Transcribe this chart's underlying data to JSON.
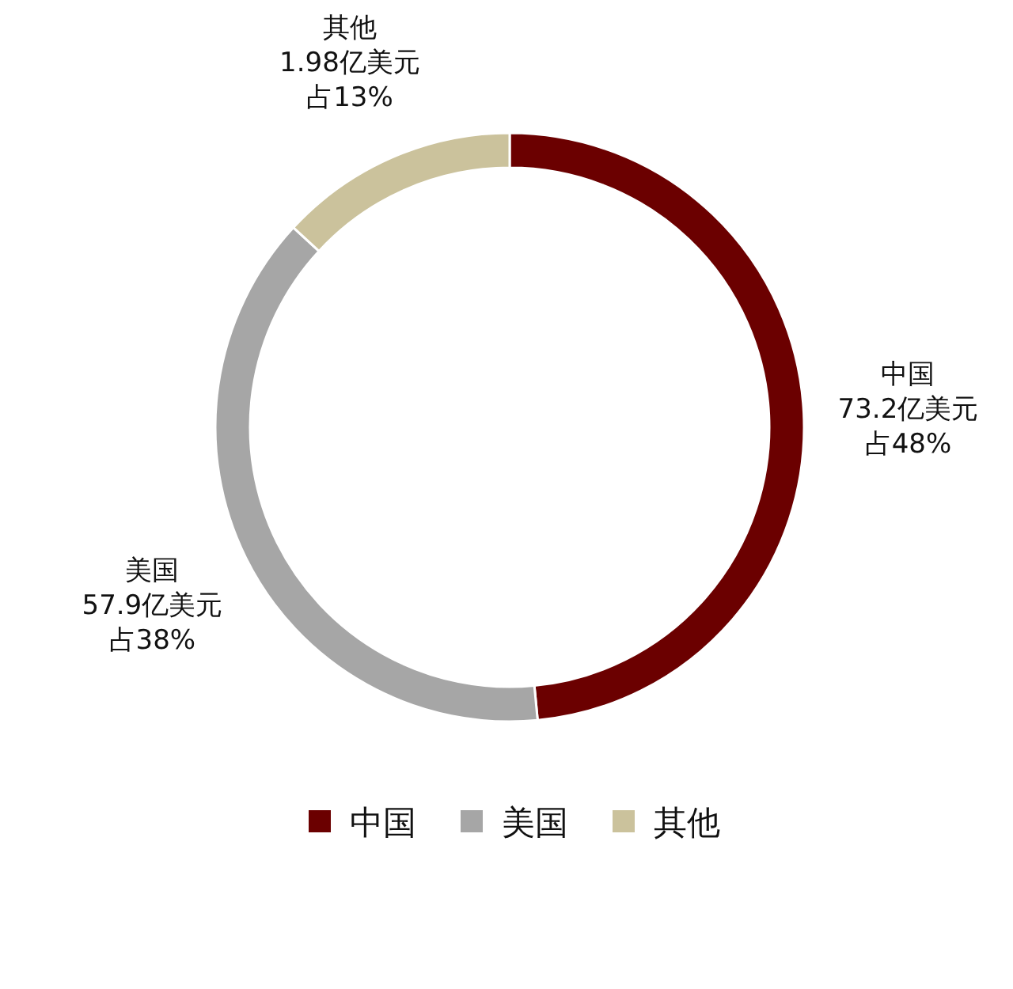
{
  "chart_data": {
    "type": "donut",
    "categories": [
      "中国",
      "美国",
      "其他"
    ],
    "values": [
      48,
      38,
      13
    ],
    "value_labels": [
      "73.2亿美元占48%",
      "57.9亿美元占38%",
      "1.98亿美元占13%"
    ],
    "colors": [
      "#6b0000",
      "#a6a6a6",
      "#cbc29c"
    ],
    "legend": "bottom"
  }
}
